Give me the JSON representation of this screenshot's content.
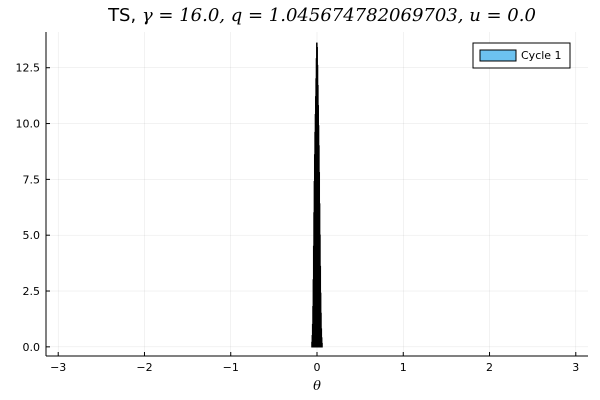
{
  "chart_data": {
    "type": "histogram",
    "title_prefix": "TS, ",
    "title_math": "γ = 16.0, q = 1.045674782069703, u = 0.0",
    "title_parts": [
      {
        "text": "TS, ",
        "style": "plain"
      },
      {
        "text": "γ = 16.0, q = 1.045674782069703,",
        "style": "math"
      },
      {
        "text": " u = 0.0",
        "style": "math"
      }
    ],
    "xlabel": "θ",
    "ylabel": "",
    "xlim": [
      -3.14159,
      3.14159
    ],
    "ylim": [
      -0.41,
      14.1
    ],
    "xticks": [
      -3,
      -2,
      -1,
      0,
      1,
      2,
      3
    ],
    "xtick_labels": [
      "−3",
      "−2",
      "−1",
      "0",
      "1",
      "2",
      "3"
    ],
    "yticks": [
      0.0,
      2.5,
      5.0,
      7.5,
      10.0,
      12.5
    ],
    "ytick_labels": [
      "0.0",
      "2.5",
      "5.0",
      "7.5",
      "10.0",
      "12.5"
    ],
    "grid": true,
    "legend_position": "top-right",
    "series": [
      {
        "name": "Cycle 1",
        "color": "#6cc2f0",
        "edge_color": "#000000",
        "bin_width": 0.004,
        "x": [
          -0.06,
          -0.056,
          -0.052,
          -0.048,
          -0.044,
          -0.04,
          -0.036,
          -0.032,
          -0.028,
          -0.024,
          -0.02,
          -0.016,
          -0.012,
          -0.008,
          -0.004,
          0.0,
          0.004,
          0.008,
          0.012,
          0.016,
          0.02,
          0.024,
          0.028,
          0.032,
          0.036,
          0.04,
          0.044,
          0.048,
          0.052,
          0.056
        ],
        "values": [
          0.2,
          0.5,
          1.0,
          1.8,
          3.0,
          4.5,
          6.0,
          7.4,
          8.6,
          9.6,
          10.4,
          11.2,
          12.0,
          12.9,
          13.6,
          13.4,
          12.6,
          11.7,
          10.8,
          9.9,
          9.0,
          7.8,
          6.4,
          5.0,
          3.6,
          2.4,
          1.5,
          0.8,
          0.4,
          0.15
        ]
      }
    ]
  }
}
